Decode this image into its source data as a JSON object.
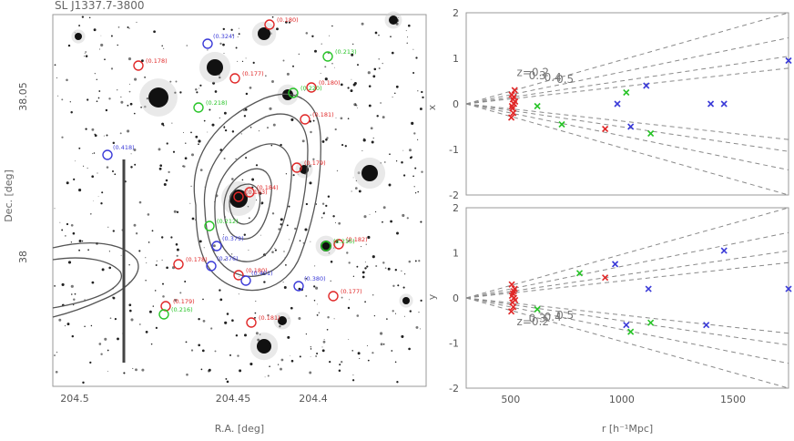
{
  "title": "SL J1337.7-3800",
  "colors": {
    "red_group": "#e02828",
    "green_group": "#28c428",
    "blue_group": "#3b3bd8",
    "contour": "#555555",
    "dashed": "#8a8a8a"
  },
  "sky": {
    "xlabel": "R.A. [deg]",
    "ylabel": "Dec. [deg]",
    "xticks": [
      "204.5",
      "204.45",
      "204.4"
    ],
    "yticks": [
      "38.05",
      "38"
    ],
    "labels": {
      "red": [
        "(0.180)",
        "(0.178)",
        "(0.177)",
        "(0.180)",
        "(0.181)",
        "(0.179)",
        "(0.183)",
        "(0.184)",
        "(0.178)",
        "(0.180)",
        "(0.182)",
        "(0.177)",
        "(0.179)",
        "(0.181)"
      ],
      "green": [
        "(0.213)",
        "(0.220)",
        "(0.218)",
        "(0.212)",
        "(0.215)",
        "(0.216)"
      ],
      "blue": [
        "(0.324)",
        "(0.418)",
        "(0.379)",
        "(0.376)",
        "(0.380)",
        "(0.401)"
      ]
    }
  },
  "chart_data": [
    {
      "type": "scatter",
      "panel": "top",
      "xlim": [
        300,
        1750
      ],
      "ylim": [
        -2,
        2
      ],
      "yticks": [
        "2",
        "1",
        "0",
        "-1",
        "-2"
      ],
      "ylabel": "x",
      "z_lines": [
        0.2,
        0.3,
        0.4,
        0.5
      ],
      "z_labels": [
        "z=0.2",
        "0.3",
        "0.4",
        "0.5"
      ],
      "series": [
        {
          "color": "red",
          "x": [
            505,
            510,
            515,
            508,
            512,
            518,
            503,
            520,
            506,
            514,
            925
          ],
          "y": [
            0.2,
            0.1,
            0.0,
            -0.1,
            -0.2,
            0.3,
            -0.3,
            0.05,
            -0.05,
            0.15,
            -0.55
          ]
        },
        {
          "color": "green",
          "x": [
            620,
            730,
            1020,
            1130
          ],
          "y": [
            -0.05,
            -0.45,
            0.25,
            -0.65
          ]
        },
        {
          "color": "blue",
          "x": [
            980,
            1040,
            1110,
            1400,
            1460,
            1750
          ],
          "y": [
            0.0,
            -0.5,
            0.4,
            0.0,
            0.0,
            0.95
          ]
        }
      ]
    },
    {
      "type": "scatter",
      "panel": "bottom",
      "xlim": [
        300,
        1750
      ],
      "ylim": [
        -2,
        2
      ],
      "yticks": [
        "2",
        "1",
        "0",
        "-1",
        "-2"
      ],
      "ylabel": "y",
      "xticks": [
        "500",
        "1000",
        "1500"
      ],
      "xlabel": "r [h⁻¹Mpc]",
      "z_lines": [
        0.2,
        0.3,
        0.4,
        0.5
      ],
      "z_labels": [
        "z=0.2",
        "0.3",
        "0.4",
        "0.5"
      ],
      "series": [
        {
          "color": "red",
          "x": [
            505,
            510,
            515,
            508,
            512,
            518,
            503,
            520,
            506,
            514,
            925
          ],
          "y": [
            0.3,
            0.1,
            0.0,
            -0.1,
            -0.2,
            0.2,
            -0.3,
            -0.05,
            0.05,
            0.15,
            0.45
          ]
        },
        {
          "color": "green",
          "x": [
            620,
            810,
            1040,
            1130
          ],
          "y": [
            -0.25,
            0.55,
            -0.75,
            -0.55
          ]
        },
        {
          "color": "blue",
          "x": [
            970,
            1020,
            1120,
            1380,
            1460,
            1750
          ],
          "y": [
            0.75,
            -0.6,
            0.2,
            -0.6,
            1.05,
            0.2
          ]
        }
      ]
    }
  ]
}
